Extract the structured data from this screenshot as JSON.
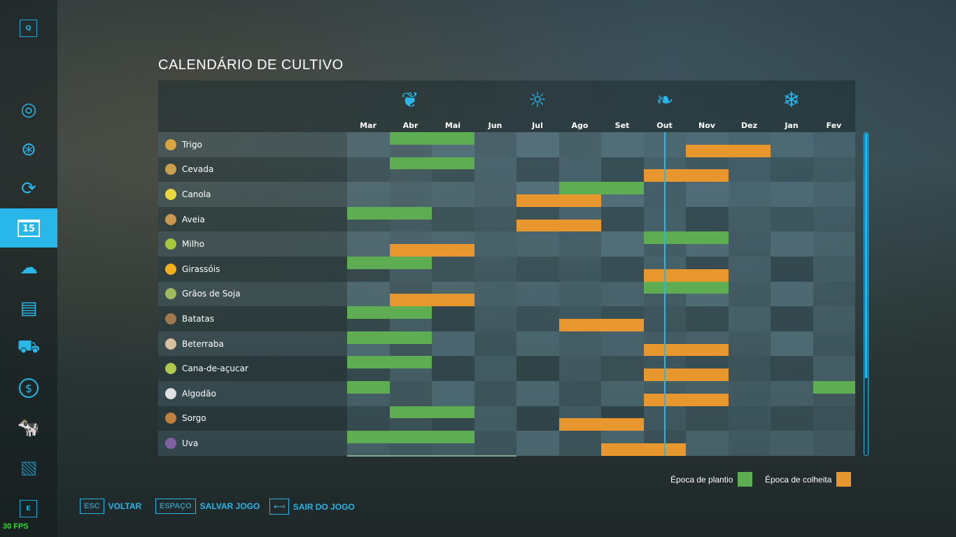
{
  "title": "CALENDÁRIO DE CULTIVO",
  "sidebar": {
    "top_key": "Q",
    "bottom_key": "E",
    "items": [
      "map-icon",
      "steering-wheel-icon",
      "crop-cycle-icon",
      "calendar-icon",
      "weather-icon",
      "statistics-icon",
      "tractor-icon",
      "finance-icon",
      "animals-icon",
      "contracts-icon"
    ],
    "active_day": "15"
  },
  "fps": "30 FPS",
  "seasons": [
    "spring-icon",
    "summer-icon",
    "autumn-icon",
    "winter-icon"
  ],
  "months": [
    "Mar",
    "Abr",
    "Mai",
    "Jun",
    "Jul",
    "Ago",
    "Set",
    "Out",
    "Nov",
    "Dez",
    "Jan",
    "Fev"
  ],
  "current_month_fraction": 7.5,
  "crops": [
    {
      "name": "Trigo",
      "color": "#d9a540",
      "plant": [
        [
          1,
          2
        ]
      ],
      "harvest": [
        [
          8,
          9
        ]
      ]
    },
    {
      "name": "Cevada",
      "color": "#c9a050",
      "plant": [
        [
          1,
          2
        ]
      ],
      "harvest": [
        [
          7,
          8
        ]
      ]
    },
    {
      "name": "Canola",
      "color": "#e8d840",
      "plant": [
        [
          5,
          6
        ]
      ],
      "harvest": [
        [
          4,
          5
        ]
      ]
    },
    {
      "name": "Aveia",
      "color": "#c89850",
      "plant": [
        [
          0,
          1
        ]
      ],
      "harvest": [
        [
          4,
          5
        ]
      ]
    },
    {
      "name": "Milho",
      "color": "#a8c840",
      "plant": [
        [
          7,
          8
        ]
      ],
      "harvest": [
        [
          1,
          2
        ]
      ]
    },
    {
      "name": "Girassóis",
      "color": "#f0b020",
      "plant": [
        [
          0,
          1
        ]
      ],
      "harvest": [
        [
          7,
          8
        ]
      ]
    },
    {
      "name": "Grãos de Soja",
      "color": "#a0b860",
      "plant": [
        [
          7,
          8
        ]
      ],
      "harvest": [
        [
          1,
          2
        ]
      ]
    },
    {
      "name": "Batatas",
      "color": "#a07850",
      "plant": [
        [
          0,
          1
        ]
      ],
      "harvest": [
        [
          5,
          6
        ]
      ]
    },
    {
      "name": "Beterraba",
      "color": "#d8c0a0",
      "plant": [
        [
          0,
          1
        ]
      ],
      "harvest": [
        [
          7,
          8
        ]
      ]
    },
    {
      "name": "Cana-de-açucar",
      "color": "#b0c850",
      "plant": [
        [
          0,
          1
        ]
      ],
      "harvest": [
        [
          7,
          8
        ]
      ]
    },
    {
      "name": "Algodão",
      "color": "#e0e0e0",
      "plant": [
        [
          0,
          0
        ],
        [
          11,
          11
        ]
      ],
      "harvest": [
        [
          7,
          8
        ]
      ]
    },
    {
      "name": "Sorgo",
      "color": "#c08040",
      "plant": [
        [
          1,
          2
        ]
      ],
      "harvest": [
        [
          5,
          6
        ]
      ]
    },
    {
      "name": "Uva",
      "color": "#8060a0",
      "plant": [
        [
          0,
          2
        ]
      ],
      "harvest": [
        [
          6,
          7
        ]
      ]
    }
  ],
  "colors": {
    "plant": "#5fad52",
    "harvest": "#e8962e",
    "accent": "#29b6e8"
  },
  "scroll_fraction": 0.76,
  "legend": {
    "plant": "Época de plantio",
    "harvest": "Época de colheita"
  },
  "buttons": [
    {
      "key": "ESC",
      "label": "VOLTAR"
    },
    {
      "key": "ESPAÇO",
      "label": "SALVAR JOGO"
    },
    {
      "key": "⟻",
      "label": "SAIR DO JOGO"
    }
  ]
}
